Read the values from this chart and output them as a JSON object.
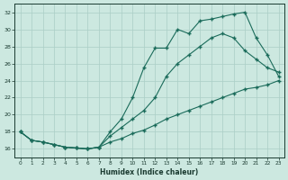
{
  "xlabel": "Humidex (Indice chaleur)",
  "bg_color": "#cce8e0",
  "grid_color": "#aacec6",
  "line_color": "#1a6b5a",
  "xlim": [
    -0.5,
    23.5
  ],
  "ylim": [
    15,
    33
  ],
  "xticks": [
    0,
    1,
    2,
    3,
    4,
    5,
    6,
    7,
    8,
    9,
    10,
    11,
    12,
    13,
    14,
    15,
    16,
    17,
    18,
    19,
    20,
    21,
    22,
    23
  ],
  "yticks": [
    16,
    18,
    20,
    22,
    24,
    26,
    28,
    30,
    32
  ],
  "line1_x": [
    0,
    1,
    2,
    3,
    4,
    5,
    6,
    7,
    8,
    9,
    10,
    11,
    12,
    13,
    14,
    15,
    16,
    17,
    18,
    19,
    20,
    21,
    22,
    23
  ],
  "line1_y": [
    18.0,
    17.0,
    16.8,
    16.5,
    16.2,
    16.1,
    16.0,
    16.2,
    16.8,
    17.2,
    17.8,
    18.2,
    18.8,
    19.5,
    20.0,
    20.5,
    21.0,
    21.5,
    22.0,
    22.5,
    23.0,
    23.2,
    23.5,
    24.0
  ],
  "line2_x": [
    0,
    1,
    2,
    3,
    4,
    5,
    6,
    7,
    8,
    9,
    10,
    11,
    12,
    13,
    14,
    15,
    16,
    17,
    18,
    19,
    20,
    21,
    22,
    23
  ],
  "line2_y": [
    18.0,
    17.0,
    16.8,
    16.5,
    16.2,
    16.1,
    16.0,
    16.2,
    17.5,
    18.5,
    19.5,
    20.5,
    22.0,
    24.5,
    26.0,
    27.0,
    28.0,
    29.0,
    29.5,
    29.0,
    27.5,
    26.5,
    25.5,
    25.0
  ],
  "line3_x": [
    0,
    1,
    2,
    3,
    4,
    5,
    6,
    7,
    8,
    9,
    10,
    11,
    12,
    13,
    14,
    15,
    16,
    17,
    18,
    19,
    20,
    21,
    22,
    23
  ],
  "line3_y": [
    18.0,
    17.0,
    16.8,
    16.5,
    16.2,
    16.1,
    16.0,
    16.2,
    18.0,
    19.5,
    22.0,
    25.5,
    27.8,
    27.8,
    30.0,
    29.5,
    31.0,
    31.2,
    31.5,
    31.8,
    32.0,
    29.0,
    27.0,
    24.5
  ]
}
